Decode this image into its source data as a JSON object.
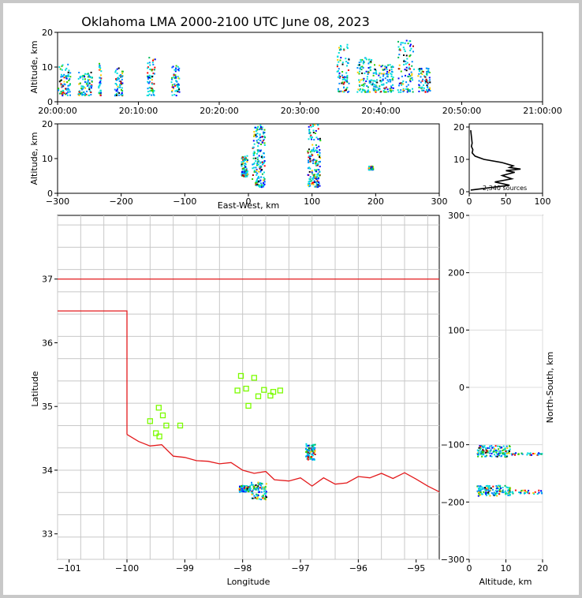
{
  "chart_data": [
    {
      "type": "scatter",
      "panel": "time-altitude",
      "title": "Oklahoma LMA 2000-2100 UTC June 08, 2023",
      "ylabel": "Altitude, km",
      "xlabel": "",
      "ylim": [
        0,
        20
      ],
      "yticks": [
        "0",
        "10",
        "20"
      ],
      "xticks": [
        "20:00:00",
        "20:10:00",
        "20:20:00",
        "20:30:00",
        "20:40:00",
        "20:50:00",
        "21:00:00"
      ],
      "xlim_minutes": [
        0,
        60
      ],
      "clusters": [
        {
          "t": [
            0,
            1.5
          ],
          "z": [
            2,
            11
          ]
        },
        {
          "t": [
            2.5,
            4.2
          ],
          "z": [
            2,
            9
          ]
        },
        {
          "t": [
            5,
            5.3
          ],
          "z": [
            2,
            12
          ]
        },
        {
          "t": [
            7,
            8
          ],
          "z": [
            2,
            10
          ]
        },
        {
          "t": [
            11,
            12
          ],
          "z": [
            2,
            13
          ]
        },
        {
          "t": [
            14,
            15
          ],
          "z": [
            2,
            11
          ]
        },
        {
          "t": [
            34.5,
            36
          ],
          "z": [
            3,
            17
          ]
        },
        {
          "t": [
            37,
            39
          ],
          "z": [
            3,
            13
          ]
        },
        {
          "t": [
            39,
            41.5
          ],
          "z": [
            3,
            11
          ]
        },
        {
          "t": [
            42,
            44
          ],
          "z": [
            3,
            18
          ]
        },
        {
          "t": [
            44.5,
            46
          ],
          "z": [
            3,
            10
          ]
        }
      ]
    },
    {
      "type": "scatter",
      "panel": "east-west-altitude",
      "xlabel": "East-West, km",
      "ylabel": "Altitude, km",
      "xlim": [
        -300,
        300
      ],
      "ylim": [
        0,
        20
      ],
      "xticks": [
        "−300",
        "−200",
        "−100",
        "0",
        "100",
        "200",
        "300"
      ],
      "yticks": [
        "0",
        "10",
        "20"
      ],
      "clusters": [
        {
          "x": [
            5,
            25
          ],
          "z": [
            2,
            20
          ]
        },
        {
          "x": [
            -12,
            -2
          ],
          "z": [
            5,
            11
          ]
        },
        {
          "x": [
            92,
            112
          ],
          "z": [
            2,
            20
          ]
        },
        {
          "x": [
            188,
            195
          ],
          "z": [
            7,
            8
          ]
        }
      ]
    },
    {
      "type": "line",
      "panel": "altitude-histogram",
      "xlim": [
        0,
        100
      ],
      "ylim": [
        0,
        20
      ],
      "xticks": [
        "0",
        "50",
        "100"
      ],
      "yticks": [
        "0",
        "10",
        "20"
      ],
      "annotation": "2,340 sources",
      "altitude": [
        0.5,
        2,
        3,
        4,
        5,
        6,
        6.5,
        7,
        7.5,
        8,
        9,
        10,
        11,
        12,
        13,
        14,
        15,
        17,
        19
      ],
      "count": [
        2,
        55,
        35,
        58,
        45,
        62,
        50,
        70,
        55,
        60,
        45,
        20,
        8,
        4,
        5,
        3,
        4,
        3,
        2
      ]
    },
    {
      "type": "scatter",
      "panel": "plan-view",
      "xlabel": "Longitude",
      "ylabel": "Latitude",
      "xlim": [
        -101.2,
        -94.6
      ],
      "ylim": [
        32.6,
        38.0
      ],
      "xticks": [
        "−101",
        "−100",
        "−99",
        "−98",
        "−97",
        "−96",
        "−95"
      ],
      "yticks": [
        "33",
        "34",
        "35",
        "36",
        "37"
      ],
      "stations": [
        [
          -99.45,
          34.98
        ],
        [
          -99.6,
          34.77
        ],
        [
          -99.38,
          34.86
        ],
        [
          -99.32,
          34.7
        ],
        [
          -99.08,
          34.7
        ],
        [
          -99.5,
          34.58
        ],
        [
          -99.44,
          34.53
        ],
        [
          -98.03,
          35.48
        ],
        [
          -97.8,
          35.45
        ],
        [
          -98.09,
          35.25
        ],
        [
          -97.94,
          35.28
        ],
        [
          -97.73,
          35.16
        ],
        [
          -97.63,
          35.26
        ],
        [
          -97.52,
          35.17
        ],
        [
          -97.47,
          35.23
        ],
        [
          -97.35,
          35.25
        ],
        [
          -97.9,
          35.01
        ]
      ],
      "clusters": [
        {
          "lon": [
            -96.92,
            -96.76
          ],
          "lat": [
            34.17,
            34.43
          ]
        },
        {
          "lon": [
            -98.07,
            -97.87
          ],
          "lat": [
            33.67,
            33.77
          ]
        },
        {
          "lon": [
            -97.86,
            -97.6
          ],
          "lat": [
            33.55,
            33.83
          ]
        }
      ]
    },
    {
      "type": "scatter",
      "panel": "altitude-north-south",
      "xlabel": "Altitude, km",
      "ylabel": "North-South, km",
      "xlim": [
        0,
        20
      ],
      "ylim": [
        -300,
        300
      ],
      "xticks": [
        "0",
        "10",
        "20"
      ],
      "yticks": [
        "−300",
        "−200",
        "−100",
        "0",
        "100",
        "200",
        "300"
      ],
      "clusters": [
        {
          "z": [
            2,
            11
          ],
          "y": [
            -120,
            -100
          ]
        },
        {
          "z": [
            11,
            20
          ],
          "y": [
            -117,
            -113
          ]
        },
        {
          "z": [
            2,
            11
          ],
          "y": [
            -188,
            -170
          ]
        },
        {
          "z": [
            11,
            20
          ],
          "y": [
            -185,
            -178
          ]
        }
      ]
    }
  ],
  "colors": {
    "border": "#e31a1c",
    "county": "#c8c8c8",
    "station": "#7cfc00",
    "grid": "#dcdcdc",
    "background": "#c8c8c8",
    "source_palette": [
      "#0000ff",
      "#0088ff",
      "#00dddd",
      "#00bb55",
      "#33cc00",
      "#ffcc00",
      "#ff6600",
      "#ff0000",
      "#aa0000",
      "#000000"
    ]
  }
}
